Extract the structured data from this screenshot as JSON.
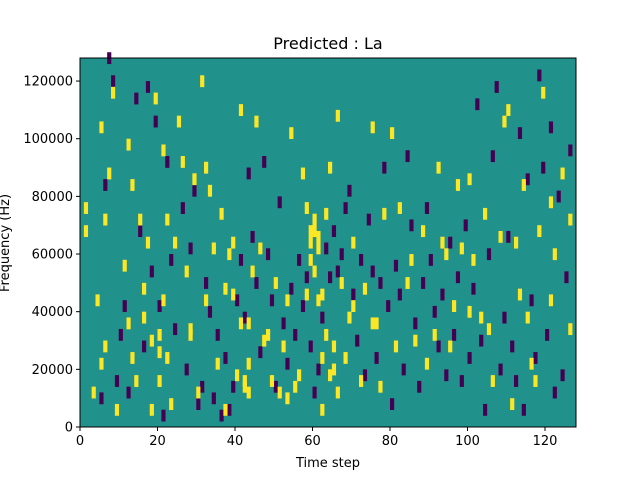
{
  "chart_data": {
    "type": "heatmap",
    "title": "Predicted : La",
    "xlabel": "Time step",
    "ylabel": "Frequency (Hz)",
    "xlim": [
      0,
      128
    ],
    "ylim": [
      0,
      128000
    ],
    "x_ticks": [
      "0",
      "20",
      "40",
      "60",
      "80",
      "100",
      "120"
    ],
    "x_tick_values": [
      0,
      20,
      40,
      60,
      80,
      100,
      120
    ],
    "y_ticks": [
      "0",
      "20000",
      "40000",
      "60000",
      "80000",
      "100000",
      "120000"
    ],
    "y_tick_values": [
      0,
      20000,
      40000,
      60000,
      80000,
      100000,
      120000
    ],
    "grid": false,
    "colormap": "viridis",
    "colors": {
      "low": "#440154",
      "mid": "#21918c",
      "high": "#fde725"
    },
    "background_value": 0,
    "cell_height_hz": 4000,
    "high_cells": [
      [
        1,
        74000
      ],
      [
        1,
        66000
      ],
      [
        3,
        10000
      ],
      [
        4,
        42000
      ],
      [
        5,
        102000
      ],
      [
        5,
        20000
      ],
      [
        6,
        26000
      ],
      [
        6,
        70000
      ],
      [
        7,
        86000
      ],
      [
        8,
        114000
      ],
      [
        9,
        4000
      ],
      [
        11,
        54000
      ],
      [
        12,
        34000
      ],
      [
        12,
        96000
      ],
      [
        13,
        82000
      ],
      [
        13,
        22000
      ],
      [
        14,
        14000
      ],
      [
        15,
        70000
      ],
      [
        16,
        46000
      ],
      [
        16,
        36000
      ],
      [
        17,
        62000
      ],
      [
        18,
        28000
      ],
      [
        18,
        4000
      ],
      [
        19,
        112000
      ],
      [
        20,
        30000
      ],
      [
        20,
        24000
      ],
      [
        20,
        14000
      ],
      [
        21,
        42000
      ],
      [
        21,
        94000
      ],
      [
        22,
        22000
      ],
      [
        22,
        70000
      ],
      [
        23,
        6000
      ],
      [
        24,
        62000
      ],
      [
        25,
        104000
      ],
      [
        26,
        90000
      ],
      [
        27,
        52000
      ],
      [
        28,
        30000
      ],
      [
        28,
        32000
      ],
      [
        29,
        84000
      ],
      [
        30,
        10000
      ],
      [
        31,
        118000
      ],
      [
        32,
        88000
      ],
      [
        32,
        42000
      ],
      [
        33,
        80000
      ],
      [
        34,
        60000
      ],
      [
        35,
        20000
      ],
      [
        36,
        72000
      ],
      [
        37,
        4000
      ],
      [
        37,
        46000
      ],
      [
        38,
        58000
      ],
      [
        39,
        62000
      ],
      [
        39,
        44000
      ],
      [
        40,
        16000
      ],
      [
        41,
        108000
      ],
      [
        41,
        34000
      ],
      [
        42,
        12000
      ],
      [
        42,
        14000
      ],
      [
        43,
        20000
      ],
      [
        43,
        34000
      ],
      [
        43,
        10000
      ],
      [
        44,
        52000
      ],
      [
        45,
        104000
      ],
      [
        46,
        60000
      ],
      [
        47,
        28000
      ],
      [
        48,
        30000
      ],
      [
        49,
        14000
      ],
      [
        50,
        48000
      ],
      [
        51,
        10000
      ],
      [
        52,
        26000
      ],
      [
        53,
        8000
      ],
      [
        53,
        42000
      ],
      [
        54,
        100000
      ],
      [
        55,
        12000
      ],
      [
        56,
        16000
      ],
      [
        57,
        86000
      ],
      [
        58,
        44000
      ],
      [
        58,
        74000
      ],
      [
        59,
        66000
      ],
      [
        59,
        56000
      ],
      [
        59,
        62000
      ],
      [
        60,
        52000
      ],
      [
        60,
        66000
      ],
      [
        60,
        70000
      ],
      [
        61,
        60000
      ],
      [
        61,
        64000
      ],
      [
        61,
        42000
      ],
      [
        62,
        44000
      ],
      [
        62,
        22000
      ],
      [
        62,
        4000
      ],
      [
        63,
        30000
      ],
      [
        63,
        72000
      ],
      [
        64,
        88000
      ],
      [
        64,
        16000
      ],
      [
        65,
        18000
      ],
      [
        65,
        26000
      ],
      [
        66,
        106000
      ],
      [
        66,
        10000
      ],
      [
        67,
        48000
      ],
      [
        68,
        22000
      ],
      [
        69,
        36000
      ],
      [
        70,
        62000
      ],
      [
        70,
        40000
      ],
      [
        72,
        14000
      ],
      [
        73,
        46000
      ],
      [
        75,
        34000
      ],
      [
        75,
        102000
      ],
      [
        76,
        34000
      ],
      [
        77,
        12000
      ],
      [
        78,
        72000
      ],
      [
        80,
        100000
      ],
      [
        81,
        26000
      ],
      [
        82,
        74000
      ],
      [
        84,
        48000
      ],
      [
        85,
        56000
      ],
      [
        86,
        28000
      ],
      [
        88,
        66000
      ],
      [
        89,
        20000
      ],
      [
        91,
        30000
      ],
      [
        92,
        88000
      ],
      [
        93,
        62000
      ],
      [
        94,
        58000
      ],
      [
        95,
        26000
      ],
      [
        96,
        40000
      ],
      [
        97,
        82000
      ],
      [
        98,
        60000
      ],
      [
        100,
        84000
      ],
      [
        100,
        38000
      ],
      [
        101,
        56000
      ],
      [
        103,
        36000
      ],
      [
        104,
        72000
      ],
      [
        105,
        32000
      ],
      [
        106,
        14000
      ],
      [
        108,
        64000
      ],
      [
        109,
        104000
      ],
      [
        110,
        108000
      ],
      [
        111,
        6000
      ],
      [
        112,
        62000
      ],
      [
        113,
        44000
      ],
      [
        114,
        82000
      ],
      [
        115,
        36000
      ],
      [
        116,
        20000
      ],
      [
        117,
        14000
      ],
      [
        118,
        66000
      ],
      [
        119,
        114000
      ],
      [
        121,
        76000
      ],
      [
        121,
        42000
      ],
      [
        122,
        58000
      ],
      [
        124,
        86000
      ],
      [
        126,
        70000
      ],
      [
        126,
        32000
      ]
    ],
    "low_cells": [
      [
        5,
        8000
      ],
      [
        6,
        82000
      ],
      [
        7,
        126000
      ],
      [
        8,
        118000
      ],
      [
        9,
        14000
      ],
      [
        10,
        30000
      ],
      [
        11,
        40000
      ],
      [
        12,
        10000
      ],
      [
        14,
        112000
      ],
      [
        15,
        66000
      ],
      [
        16,
        26000
      ],
      [
        17,
        116000
      ],
      [
        18,
        52000
      ],
      [
        19,
        104000
      ],
      [
        20,
        40000
      ],
      [
        21,
        2000
      ],
      [
        22,
        90000
      ],
      [
        23,
        56000
      ],
      [
        24,
        32000
      ],
      [
        26,
        74000
      ],
      [
        27,
        18000
      ],
      [
        28,
        60000
      ],
      [
        29,
        80000
      ],
      [
        30,
        6000
      ],
      [
        31,
        12000
      ],
      [
        32,
        48000
      ],
      [
        33,
        38000
      ],
      [
        34,
        8000
      ],
      [
        35,
        30000
      ],
      [
        36,
        2000
      ],
      [
        37,
        22000
      ],
      [
        38,
        4000
      ],
      [
        39,
        12000
      ],
      [
        40,
        42000
      ],
      [
        41,
        56000
      ],
      [
        42,
        36000
      ],
      [
        43,
        86000
      ],
      [
        44,
        64000
      ],
      [
        45,
        48000
      ],
      [
        46,
        24000
      ],
      [
        47,
        90000
      ],
      [
        48,
        58000
      ],
      [
        49,
        42000
      ],
      [
        50,
        12000
      ],
      [
        51,
        76000
      ],
      [
        52,
        34000
      ],
      [
        53,
        20000
      ],
      [
        54,
        46000
      ],
      [
        55,
        30000
      ],
      [
        56,
        56000
      ],
      [
        57,
        40000
      ],
      [
        58,
        50000
      ],
      [
        59,
        26000
      ],
      [
        60,
        10000
      ],
      [
        61,
        18000
      ],
      [
        62,
        36000
      ],
      [
        63,
        60000
      ],
      [
        64,
        50000
      ],
      [
        65,
        66000
      ],
      [
        66,
        52000
      ],
      [
        67,
        58000
      ],
      [
        68,
        74000
      ],
      [
        69,
        80000
      ],
      [
        70,
        44000
      ],
      [
        71,
        28000
      ],
      [
        72,
        56000
      ],
      [
        73,
        16000
      ],
      [
        74,
        70000
      ],
      [
        75,
        52000
      ],
      [
        76,
        22000
      ],
      [
        77,
        48000
      ],
      [
        78,
        88000
      ],
      [
        79,
        40000
      ],
      [
        80,
        6000
      ],
      [
        81,
        54000
      ],
      [
        82,
        44000
      ],
      [
        83,
        18000
      ],
      [
        84,
        92000
      ],
      [
        85,
        68000
      ],
      [
        86,
        34000
      ],
      [
        87,
        12000
      ],
      [
        88,
        48000
      ],
      [
        89,
        74000
      ],
      [
        90,
        56000
      ],
      [
        91,
        38000
      ],
      [
        92,
        26000
      ],
      [
        93,
        44000
      ],
      [
        94,
        16000
      ],
      [
        95,
        62000
      ],
      [
        96,
        30000
      ],
      [
        97,
        50000
      ],
      [
        98,
        14000
      ],
      [
        99,
        68000
      ],
      [
        100,
        22000
      ],
      [
        101,
        46000
      ],
      [
        102,
        110000
      ],
      [
        103,
        28000
      ],
      [
        104,
        4000
      ],
      [
        105,
        58000
      ],
      [
        106,
        92000
      ],
      [
        107,
        116000
      ],
      [
        108,
        18000
      ],
      [
        109,
        36000
      ],
      [
        110,
        64000
      ],
      [
        111,
        26000
      ],
      [
        112,
        14000
      ],
      [
        113,
        100000
      ],
      [
        114,
        4000
      ],
      [
        115,
        84000
      ],
      [
        116,
        42000
      ],
      [
        117,
        22000
      ],
      [
        118,
        120000
      ],
      [
        119,
        88000
      ],
      [
        120,
        30000
      ],
      [
        121,
        102000
      ],
      [
        122,
        10000
      ],
      [
        123,
        78000
      ],
      [
        124,
        16000
      ],
      [
        125,
        50000
      ],
      [
        126,
        94000
      ]
    ]
  }
}
